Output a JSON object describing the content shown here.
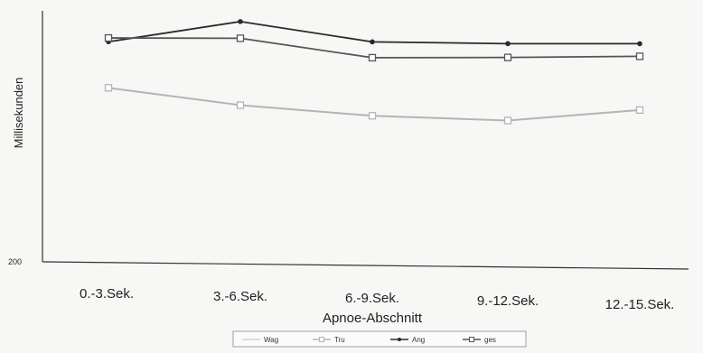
{
  "chart_data": {
    "type": "line",
    "xlabel": "Apnoe-Abschnitt",
    "ylabel": "Millisekunden",
    "categories": [
      "0.-3.Sek.",
      "3.-6.Sek.",
      "6.-9.Sek.",
      "9.-12.Sek.",
      "12.-15.Sek."
    ],
    "y_tick_labels": [
      "200"
    ],
    "ylim": [
      200,
      1000
    ],
    "grid": false,
    "legend_position": "bottom",
    "series": [
      {
        "name": "Wag",
        "color": "#d2d2d2",
        "marker": "none",
        "values": [
          null,
          null,
          null,
          null,
          null
        ]
      },
      {
        "name": "Tru",
        "color": "#b4b4b4",
        "marker": "square",
        "values": [
          793,
          740,
          710,
          700,
          742
        ]
      },
      {
        "name": "Ang",
        "color": "#2a2a2a",
        "marker": "circle",
        "values": [
          950,
          1025,
          962,
          962,
          968
        ]
      },
      {
        "name": "ges",
        "color": "#555555",
        "marker": "square",
        "values": [
          963,
          968,
          908,
          915,
          925
        ]
      }
    ]
  }
}
